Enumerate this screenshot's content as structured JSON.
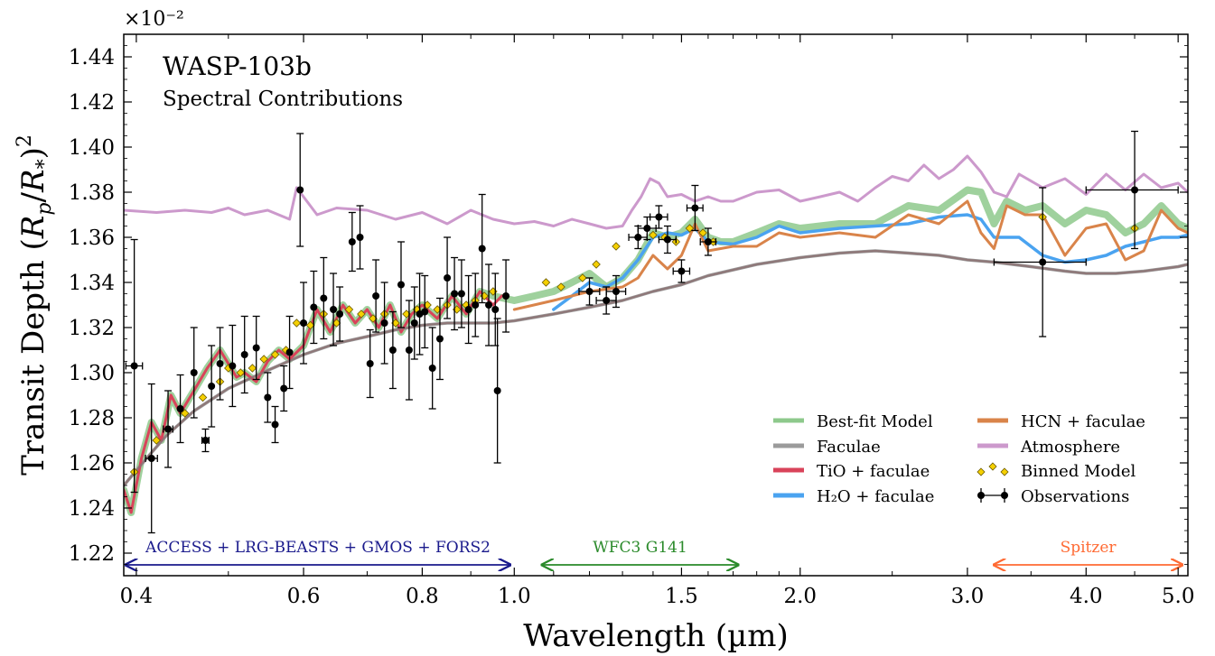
{
  "chart_data": {
    "type": "line",
    "title": "WASP-103b",
    "subtitle": "Spectral Contributions",
    "xlabel": "Wavelength (µm)",
    "ylabel": "Transit Depth (R_p/R_*)^2",
    "ylabel_parts": {
      "main": "Transit Depth ",
      "open": "(",
      "rp": "R",
      "p_sub": "p",
      "slash": "/",
      "rs": "R",
      "s_sub": "*",
      "close": ")",
      "sup": "2"
    },
    "y_multiplier": "×10⁻²",
    "x_scale": "log",
    "xlim": [
      0.388,
      5.12
    ],
    "ylim": [
      1.21,
      1.45
    ],
    "x_ticks": [
      0.4,
      0.6,
      0.8,
      1.0,
      1.5,
      2.0,
      3.0,
      4.0,
      5.0
    ],
    "x_tick_labels": [
      "0.4",
      "0.6",
      "0.8",
      "1.0",
      "1.5",
      "2.0",
      "3.0",
      "4.0",
      "5.0"
    ],
    "y_ticks": [
      1.22,
      1.24,
      1.26,
      1.28,
      1.3,
      1.32,
      1.34,
      1.36,
      1.38,
      1.4,
      1.42,
      1.44
    ],
    "y_tick_labels": [
      "1.22",
      "1.24",
      "1.26",
      "1.28",
      "1.30",
      "1.32",
      "1.34",
      "1.36",
      "1.38",
      "1.40",
      "1.42",
      "1.44"
    ],
    "grid": false,
    "legend_position": "lower-right",
    "legend": [
      {
        "label": "Best-fit Model",
        "kind": "line",
        "color": "#8ec98c"
      },
      {
        "label": "Faculae",
        "kind": "line",
        "color": "#9b9b9b"
      },
      {
        "label": "TiO + faculae",
        "kind": "line",
        "color": "#d9435a"
      },
      {
        "label": "H₂O + faculae",
        "kind": "line",
        "color": "#4aa3f0"
      },
      {
        "label": "HCN + faculae",
        "kind": "line",
        "color": "#d9844a"
      },
      {
        "label": "Atmosphere",
        "kind": "line",
        "color": "#cc99cc"
      },
      {
        "label": "Binned Model",
        "kind": "diamond",
        "color": "#f5d000"
      },
      {
        "label": "Observations",
        "kind": "errorbar",
        "color": "#000000"
      }
    ],
    "instrument_ranges": [
      {
        "label": "ACCESS + LRG-BEASTS + GMOS + FORS2",
        "x": [
          0.39,
          0.99
        ],
        "color": "#1a1a8c"
      },
      {
        "label": "WFC3 G141",
        "x": [
          1.07,
          1.72
        ],
        "color": "#2a8a2a"
      },
      {
        "label": "Spitzer",
        "x": [
          3.2,
          5.05
        ],
        "color": "#ff6a33"
      }
    ],
    "series": [
      {
        "name": "Atmosphere",
        "color": "#cc99cc",
        "x": [
          0.388,
          0.42,
          0.45,
          0.48,
          0.5,
          0.52,
          0.55,
          0.58,
          0.59,
          0.62,
          0.65,
          0.7,
          0.75,
          0.8,
          0.85,
          0.9,
          0.95,
          1.0,
          1.05,
          1.1,
          1.15,
          1.2,
          1.25,
          1.3,
          1.33,
          1.36,
          1.39,
          1.42,
          1.45,
          1.5,
          1.55,
          1.6,
          1.65,
          1.7,
          1.8,
          1.9,
          2.0,
          2.1,
          2.2,
          2.3,
          2.4,
          2.5,
          2.6,
          2.7,
          2.8,
          2.9,
          3.0,
          3.1,
          3.2,
          3.3,
          3.4,
          3.6,
          3.8,
          4.0,
          4.2,
          4.4,
          4.6,
          4.8,
          5.0,
          5.12
        ],
        "y": [
          1.372,
          1.371,
          1.372,
          1.371,
          1.373,
          1.37,
          1.372,
          1.368,
          1.382,
          1.37,
          1.373,
          1.372,
          1.368,
          1.371,
          1.366,
          1.372,
          1.368,
          1.366,
          1.367,
          1.365,
          1.368,
          1.366,
          1.364,
          1.365,
          1.372,
          1.378,
          1.386,
          1.384,
          1.378,
          1.379,
          1.376,
          1.378,
          1.376,
          1.376,
          1.38,
          1.381,
          1.376,
          1.378,
          1.38,
          1.376,
          1.382,
          1.387,
          1.385,
          1.392,
          1.386,
          1.39,
          1.396,
          1.389,
          1.38,
          1.378,
          1.388,
          1.382,
          1.386,
          1.379,
          1.388,
          1.381,
          1.388,
          1.382,
          1.384,
          1.38
        ]
      },
      {
        "name": "Faculae",
        "color": "#9b9b9b",
        "x": [
          0.388,
          0.41,
          0.43,
          0.46,
          0.5,
          0.55,
          0.6,
          0.65,
          0.7,
          0.75,
          0.8,
          0.85,
          0.9,
          0.95,
          1.0,
          1.1,
          1.2,
          1.3,
          1.4,
          1.5,
          1.6,
          1.8,
          2.0,
          2.2,
          2.4,
          2.6,
          2.8,
          3.0,
          3.2,
          3.5,
          3.8,
          4.0,
          4.3,
          4.6,
          5.0,
          5.12
        ],
        "y": [
          1.25,
          1.262,
          1.272,
          1.283,
          1.293,
          1.301,
          1.308,
          1.313,
          1.316,
          1.319,
          1.321,
          1.322,
          1.322,
          1.322,
          1.323,
          1.326,
          1.329,
          1.332,
          1.336,
          1.339,
          1.343,
          1.348,
          1.351,
          1.353,
          1.354,
          1.353,
          1.352,
          1.35,
          1.349,
          1.347,
          1.345,
          1.344,
          1.344,
          1.345,
          1.347,
          1.348
        ]
      },
      {
        "name": "H₂O + faculae",
        "color": "#4aa3f0",
        "x": [
          1.1,
          1.15,
          1.2,
          1.25,
          1.3,
          1.35,
          1.4,
          1.45,
          1.5,
          1.55,
          1.6,
          1.7,
          1.8,
          1.9,
          2.0,
          2.2,
          2.4,
          2.6,
          2.8,
          3.0,
          3.1,
          3.2,
          3.4,
          3.6,
          3.8,
          4.0,
          4.2,
          4.4,
          4.6,
          4.8,
          5.0,
          5.12
        ],
        "y": [
          1.328,
          1.334,
          1.34,
          1.338,
          1.342,
          1.35,
          1.36,
          1.362,
          1.361,
          1.364,
          1.358,
          1.357,
          1.36,
          1.365,
          1.362,
          1.364,
          1.365,
          1.366,
          1.369,
          1.37,
          1.368,
          1.36,
          1.36,
          1.352,
          1.349,
          1.35,
          1.352,
          1.356,
          1.358,
          1.36,
          1.36,
          1.361
        ]
      },
      {
        "name": "HCN + faculae",
        "color": "#d9844a",
        "x": [
          1.0,
          1.1,
          1.2,
          1.3,
          1.35,
          1.4,
          1.45,
          1.5,
          1.55,
          1.6,
          1.7,
          1.8,
          1.9,
          2.0,
          2.2,
          2.4,
          2.6,
          2.8,
          3.0,
          3.1,
          3.2,
          3.3,
          3.45,
          3.6,
          3.8,
          4.0,
          4.2,
          4.4,
          4.6,
          4.8,
          5.0,
          5.12
        ],
        "y": [
          1.328,
          1.332,
          1.336,
          1.338,
          1.342,
          1.352,
          1.346,
          1.352,
          1.366,
          1.354,
          1.356,
          1.356,
          1.362,
          1.36,
          1.362,
          1.36,
          1.37,
          1.366,
          1.376,
          1.362,
          1.355,
          1.374,
          1.37,
          1.37,
          1.352,
          1.364,
          1.366,
          1.35,
          1.354,
          1.372,
          1.364,
          1.362
        ]
      },
      {
        "name": "TiO + faculae",
        "color": "#d9435a",
        "x": [
          0.388,
          0.395,
          0.405,
          0.415,
          0.425,
          0.435,
          0.445,
          0.46,
          0.475,
          0.49,
          0.5,
          0.51,
          0.52,
          0.535,
          0.55,
          0.565,
          0.58,
          0.6,
          0.62,
          0.64,
          0.66,
          0.68,
          0.7,
          0.72,
          0.74,
          0.76,
          0.78,
          0.8,
          0.83,
          0.86,
          0.89,
          0.92,
          0.95,
          0.97
        ],
        "y": [
          1.248,
          1.238,
          1.262,
          1.278,
          1.27,
          1.29,
          1.282,
          1.292,
          1.302,
          1.31,
          1.304,
          1.298,
          1.3,
          1.296,
          1.305,
          1.31,
          1.306,
          1.312,
          1.328,
          1.318,
          1.33,
          1.322,
          1.328,
          1.32,
          1.33,
          1.318,
          1.326,
          1.33,
          1.324,
          1.334,
          1.326,
          1.336,
          1.33,
          1.334
        ]
      },
      {
        "name": "Best-fit Model",
        "color": "#8ec98c",
        "x": [
          0.388,
          0.395,
          0.405,
          0.415,
          0.425,
          0.435,
          0.445,
          0.46,
          0.475,
          0.49,
          0.5,
          0.51,
          0.52,
          0.535,
          0.55,
          0.565,
          0.58,
          0.6,
          0.62,
          0.64,
          0.66,
          0.68,
          0.7,
          0.72,
          0.74,
          0.76,
          0.78,
          0.8,
          0.83,
          0.86,
          0.89,
          0.92,
          0.95,
          1.0,
          1.05,
          1.1,
          1.15,
          1.2,
          1.25,
          1.3,
          1.35,
          1.4,
          1.45,
          1.5,
          1.55,
          1.6,
          1.65,
          1.7,
          1.8,
          1.9,
          2.0,
          2.2,
          2.4,
          2.6,
          2.8,
          3.0,
          3.1,
          3.2,
          3.3,
          3.45,
          3.6,
          3.8,
          4.0,
          4.2,
          4.4,
          4.6,
          4.8,
          5.0,
          5.12
        ],
        "y": [
          1.248,
          1.238,
          1.262,
          1.278,
          1.27,
          1.29,
          1.282,
          1.292,
          1.302,
          1.31,
          1.304,
          1.298,
          1.3,
          1.296,
          1.305,
          1.31,
          1.306,
          1.312,
          1.328,
          1.318,
          1.33,
          1.322,
          1.328,
          1.32,
          1.33,
          1.318,
          1.326,
          1.33,
          1.324,
          1.334,
          1.326,
          1.336,
          1.334,
          1.332,
          1.334,
          1.336,
          1.34,
          1.344,
          1.338,
          1.342,
          1.35,
          1.362,
          1.36,
          1.362,
          1.368,
          1.36,
          1.358,
          1.358,
          1.362,
          1.366,
          1.364,
          1.366,
          1.366,
          1.374,
          1.372,
          1.381,
          1.38,
          1.366,
          1.376,
          1.372,
          1.374,
          1.366,
          1.372,
          1.37,
          1.362,
          1.366,
          1.374,
          1.366,
          1.364
        ]
      }
    ],
    "binned_model": {
      "x": [
        0.398,
        0.42,
        0.45,
        0.47,
        0.49,
        0.5,
        0.515,
        0.53,
        0.545,
        0.56,
        0.575,
        0.59,
        0.61,
        0.63,
        0.65,
        0.67,
        0.69,
        0.71,
        0.73,
        0.75,
        0.77,
        0.79,
        0.81,
        0.83,
        0.85,
        0.87,
        0.89,
        0.91,
        0.93,
        0.95,
        1.08,
        1.12,
        1.18,
        1.22,
        1.28,
        1.35,
        1.4,
        1.44,
        1.48,
        1.53,
        1.58,
        1.62,
        3.6,
        4.5
      ],
      "y": [
        1.256,
        1.27,
        1.282,
        1.289,
        1.296,
        1.302,
        1.3,
        1.302,
        1.306,
        1.308,
        1.31,
        1.322,
        1.321,
        1.326,
        1.322,
        1.328,
        1.326,
        1.324,
        1.326,
        1.322,
        1.326,
        1.328,
        1.33,
        1.328,
        1.33,
        1.328,
        1.33,
        1.332,
        1.334,
        1.336,
        1.34,
        1.338,
        1.342,
        1.348,
        1.356,
        1.36,
        1.361,
        1.36,
        1.358,
        1.364,
        1.362,
        1.358,
        1.369,
        1.364
      ]
    },
    "observations": {
      "x": [
        0.398,
        0.415,
        0.432,
        0.445,
        0.46,
        0.473,
        0.48,
        0.49,
        0.505,
        0.52,
        0.535,
        0.55,
        0.56,
        0.572,
        0.58,
        0.595,
        0.6,
        0.615,
        0.63,
        0.645,
        0.655,
        0.675,
        0.688,
        0.705,
        0.715,
        0.73,
        0.745,
        0.76,
        0.775,
        0.785,
        0.795,
        0.805,
        0.82,
        0.835,
        0.85,
        0.865,
        0.88,
        0.895,
        0.91,
        0.925,
        0.94,
        0.96,
        0.98,
        0.955,
        1.2,
        1.25,
        1.28,
        1.35,
        1.38,
        1.42,
        1.45,
        1.5,
        1.55,
        1.6,
        3.6,
        4.5
      ],
      "y": [
        1.303,
        1.262,
        1.275,
        1.284,
        1.3,
        1.27,
        1.294,
        1.304,
        1.303,
        1.308,
        1.311,
        1.289,
        1.277,
        1.293,
        1.309,
        1.381,
        1.322,
        1.329,
        1.333,
        1.328,
        1.326,
        1.358,
        1.36,
        1.304,
        1.334,
        1.322,
        1.31,
        1.339,
        1.31,
        1.322,
        1.326,
        1.327,
        1.302,
        1.315,
        1.342,
        1.335,
        1.335,
        1.328,
        1.33,
        1.355,
        1.33,
        1.292,
        1.334,
        1.328,
        1.336,
        1.332,
        1.336,
        1.36,
        1.364,
        1.369,
        1.359,
        1.345,
        1.373,
        1.358,
        1.349,
        1.381
      ],
      "yerr": [
        0.056,
        0.033,
        0.017,
        0.015,
        0.02,
        0.005,
        0.018,
        0.016,
        0.018,
        0.017,
        0.014,
        0.011,
        0.008,
        0.01,
        0.016,
        0.025,
        0.018,
        0.016,
        0.018,
        0.016,
        0.012,
        0.013,
        0.014,
        0.015,
        0.016,
        0.018,
        0.017,
        0.019,
        0.022,
        0.016,
        0.018,
        0.016,
        0.018,
        0.018,
        0.018,
        0.016,
        0.015,
        0.015,
        0.014,
        0.024,
        0.018,
        0.032,
        0.016,
        0.016,
        0.006,
        0.006,
        0.007,
        0.005,
        0.005,
        0.005,
        0.006,
        0.005,
        0.01,
        0.006,
        0.033,
        0.026
      ],
      "xerr_lo": [
        0.008,
        0.006,
        0.005,
        0,
        0,
        0.004,
        0,
        0,
        0,
        0,
        0,
        0,
        0,
        0,
        0,
        0,
        0,
        0,
        0,
        0,
        0,
        0,
        0,
        0,
        0,
        0,
        0,
        0,
        0,
        0,
        0,
        0,
        0,
        0,
        0,
        0,
        0,
        0,
        0,
        0,
        0,
        0,
        0,
        0,
        0.03,
        0.03,
        0.03,
        0.03,
        0.03,
        0.03,
        0.03,
        0.03,
        0.03,
        0.03,
        0.4,
        0.5
      ],
      "xerr_hi": [
        0.008,
        0.006,
        0.005,
        0,
        0,
        0.004,
        0,
        0,
        0,
        0,
        0,
        0,
        0,
        0,
        0,
        0,
        0,
        0,
        0,
        0,
        0,
        0,
        0,
        0,
        0,
        0,
        0,
        0,
        0,
        0,
        0,
        0,
        0,
        0,
        0,
        0,
        0,
        0,
        0,
        0,
        0,
        0,
        0,
        0,
        0.03,
        0.03,
        0.03,
        0.03,
        0.03,
        0.03,
        0.03,
        0.03,
        0.03,
        0.03,
        0.4,
        0.5
      ]
    }
  }
}
